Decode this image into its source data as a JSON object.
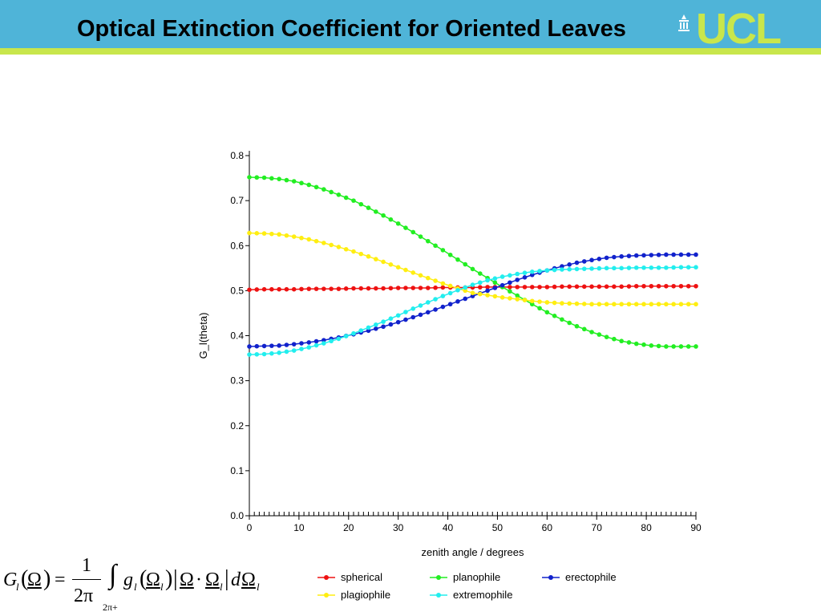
{
  "header": {
    "title": "Optical Extinction Coefficient for Oriented Leaves",
    "logo_text": "UCL",
    "colors": {
      "bar": "#4fb4d8",
      "accent": "#c8e64c"
    }
  },
  "chart_data": {
    "type": "line",
    "xlabel": "zenith angle / degrees",
    "ylabel": "G_l(theta)",
    "xlim": [
      0,
      90
    ],
    "ylim": [
      0.0,
      0.8
    ],
    "x_ticks": [
      0,
      10,
      20,
      30,
      40,
      50,
      60,
      70,
      80,
      90
    ],
    "y_ticks": [
      "0.0",
      "0.1",
      "0.2",
      "0.3",
      "0.4",
      "0.5",
      "0.6",
      "0.7",
      "0.8"
    ],
    "x": [
      0,
      3,
      6,
      9,
      12,
      15,
      18,
      21,
      24,
      27,
      30,
      33,
      36,
      39,
      42,
      45,
      48,
      51,
      54,
      57,
      60,
      63,
      66,
      69,
      72,
      75,
      78,
      81,
      84,
      87,
      90
    ],
    "series": [
      {
        "name": "spherical",
        "color": "#ee1111",
        "values": [
          0.502,
          0.503,
          0.503,
          0.503,
          0.504,
          0.504,
          0.504,
          0.505,
          0.505,
          0.505,
          0.506,
          0.506,
          0.506,
          0.507,
          0.507,
          0.507,
          0.508,
          0.508,
          0.508,
          0.508,
          0.508,
          0.509,
          0.509,
          0.509,
          0.509,
          0.509,
          0.51,
          0.51,
          0.51,
          0.51,
          0.51
        ]
      },
      {
        "name": "planophile",
        "color": "#22ee22",
        "values": [
          0.752,
          0.751,
          0.748,
          0.743,
          0.735,
          0.725,
          0.713,
          0.7,
          0.684,
          0.667,
          0.649,
          0.63,
          0.61,
          0.59,
          0.569,
          0.548,
          0.528,
          0.508,
          0.489,
          0.47,
          0.452,
          0.436,
          0.421,
          0.408,
          0.397,
          0.388,
          0.382,
          0.378,
          0.376,
          0.376,
          0.376
        ]
      },
      {
        "name": "erectophile",
        "color": "#1122cc",
        "values": [
          0.376,
          0.377,
          0.378,
          0.381,
          0.385,
          0.39,
          0.396,
          0.403,
          0.411,
          0.42,
          0.43,
          0.441,
          0.452,
          0.464,
          0.476,
          0.488,
          0.5,
          0.512,
          0.524,
          0.535,
          0.545,
          0.554,
          0.562,
          0.568,
          0.573,
          0.576,
          0.578,
          0.579,
          0.58,
          0.58,
          0.58
        ]
      },
      {
        "name": "plagiophile",
        "color": "#ffee11",
        "values": [
          0.628,
          0.627,
          0.625,
          0.62,
          0.614,
          0.606,
          0.597,
          0.587,
          0.576,
          0.564,
          0.552,
          0.54,
          0.528,
          0.516,
          0.505,
          0.495,
          0.49,
          0.485,
          0.481,
          0.477,
          0.474,
          0.472,
          0.471,
          0.47,
          0.47,
          0.47,
          0.47,
          0.47,
          0.47,
          0.47,
          0.47
        ]
      },
      {
        "name": "extremophile",
        "color": "#22eeee",
        "values": [
          0.358,
          0.359,
          0.362,
          0.367,
          0.374,
          0.383,
          0.393,
          0.405,
          0.418,
          0.431,
          0.445,
          0.46,
          0.474,
          0.488,
          0.501,
          0.513,
          0.523,
          0.531,
          0.537,
          0.542,
          0.545,
          0.547,
          0.548,
          0.549,
          0.55,
          0.55,
          0.551,
          0.551,
          0.551,
          0.552,
          0.552
        ]
      }
    ],
    "legend_position": "bottom"
  },
  "formula": {
    "G": "G",
    "l": "l",
    "lp": "(",
    "Omega": "Ω",
    "rp": ")",
    "eq": "=",
    "num": "1",
    "den": "2π",
    "integral": "∫",
    "limit": "2π+",
    "g": "g",
    "cdot": "·",
    "bar": "|",
    "d": "d"
  }
}
